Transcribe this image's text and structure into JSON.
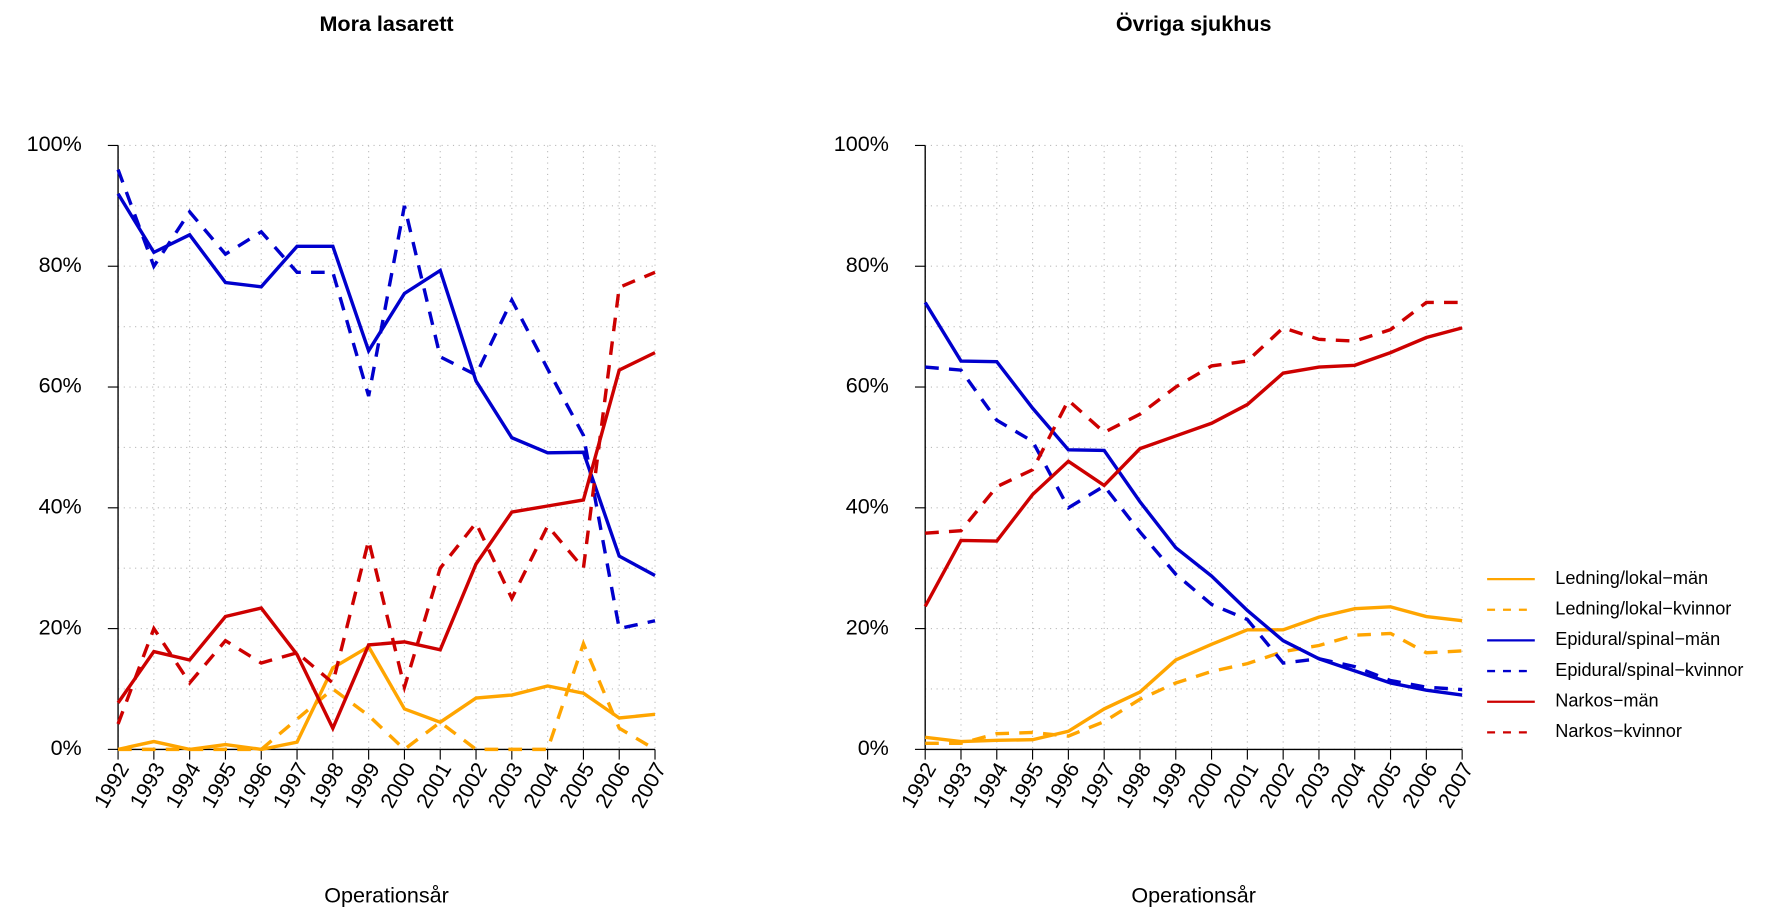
{
  "chart_data": [
    {
      "type": "line",
      "title": "Mora lasarett",
      "x_label": "Operationsår",
      "x": [
        1992,
        1993,
        1994,
        1995,
        1996,
        1997,
        1998,
        1999,
        2000,
        2001,
        2002,
        2003,
        2004,
        2005,
        2006,
        2007
      ],
      "xlim": [
        1992,
        2007
      ],
      "xticks": [
        1992,
        1993,
        1994,
        1995,
        1996,
        1997,
        1998,
        1999,
        2000,
        2001,
        2002,
        2003,
        2004,
        2005,
        2006,
        2007
      ],
      "ylim": [
        0,
        100
      ],
      "yticks": [
        {
          "value": 0,
          "label": "0%"
        },
        {
          "value": 20,
          "label": "20%"
        },
        {
          "value": 40,
          "label": "40%"
        },
        {
          "value": 60,
          "label": "60%"
        },
        {
          "value": 80,
          "label": "80%"
        },
        {
          "value": 100,
          "label": "100%"
        }
      ],
      "minor_grid_yticks": [
        10,
        30,
        50,
        70,
        90
      ],
      "grid": true,
      "series": [
        {
          "color": "#ffa500",
          "linestyle": "solid",
          "values": [
            0,
            1.3,
            0,
            0.8,
            0,
            1.2,
            13.5,
            17,
            6.7,
            4.5,
            8.5,
            9,
            10.5,
            9.3,
            5.2,
            5.8
          ]
        },
        {
          "color": "#ffa500",
          "linestyle": "dashed",
          "values": [
            0,
            0,
            0,
            0,
            0,
            5,
            10,
            5.6,
            0,
            4.5,
            0,
            0,
            0,
            17.5,
            3.5,
            0
          ]
        },
        {
          "color": "#0000cd",
          "linestyle": "solid",
          "values": [
            92,
            82.3,
            85.2,
            77.3,
            76.6,
            83.3,
            83.3,
            66,
            75.5,
            79.3,
            61,
            51.6,
            49.1,
            49.2,
            32,
            28.8
          ]
        },
        {
          "color": "#0000cd",
          "linestyle": "dashed",
          "values": [
            96,
            80,
            89,
            82,
            85.7,
            79,
            79,
            58.5,
            90,
            65,
            62,
            74.4,
            63,
            52,
            20,
            21.3
          ]
        },
        {
          "color": "#cd0000",
          "linestyle": "solid",
          "values": [
            7.7,
            16.2,
            14.8,
            22,
            23.4,
            15.7,
            3.5,
            17.3,
            17.8,
            16.5,
            30.7,
            39.3,
            40.3,
            41.3,
            62.8,
            65.7
          ]
        },
        {
          "color": "#cd0000",
          "linestyle": "dashed",
          "values": [
            4.2,
            20,
            11,
            18,
            14.3,
            16,
            11,
            34.6,
            10.3,
            30,
            37.5,
            25,
            37,
            30,
            76.5,
            79
          ]
        }
      ]
    },
    {
      "type": "line",
      "title": "Övriga sjukhus",
      "x_label": "Operationsår",
      "x": [
        1992,
        1993,
        1994,
        1995,
        1996,
        1997,
        1998,
        1999,
        2000,
        2001,
        2002,
        2003,
        2004,
        2005,
        2006,
        2007
      ],
      "xlim": [
        1992,
        2007
      ],
      "xticks": [
        1992,
        1993,
        1994,
        1995,
        1996,
        1997,
        1998,
        1999,
        2000,
        2001,
        2002,
        2003,
        2004,
        2005,
        2006,
        2007
      ],
      "ylim": [
        0,
        100
      ],
      "yticks": [
        {
          "value": 0,
          "label": "0%"
        },
        {
          "value": 20,
          "label": "20%"
        },
        {
          "value": 40,
          "label": "40%"
        },
        {
          "value": 60,
          "label": "60%"
        },
        {
          "value": 80,
          "label": "80%"
        },
        {
          "value": 100,
          "label": "100%"
        }
      ],
      "minor_grid_yticks": [
        10,
        30,
        50,
        70,
        90
      ],
      "grid": true,
      "legend": "right",
      "series": [
        {
          "name": "Ledning/lokal−män",
          "color": "#ffa500",
          "linestyle": "solid",
          "values": [
            2,
            1.3,
            1.5,
            1.6,
            3,
            6.7,
            9.5,
            14.8,
            17.4,
            19.8,
            19.8,
            21.9,
            23.3,
            23.6,
            22,
            21.3
          ]
        },
        {
          "name": "Ledning/lokal−kvinnor",
          "color": "#ffa500",
          "linestyle": "dashed",
          "values": [
            1,
            1,
            2.6,
            2.8,
            2.2,
            4.6,
            8.3,
            11,
            12.9,
            14.2,
            16.2,
            17.2,
            18.9,
            19.2,
            16,
            16.3
          ]
        },
        {
          "name": "Epidural/spinal−män",
          "color": "#0000cd",
          "linestyle": "solid",
          "values": [
            74,
            64.3,
            64.2,
            56.5,
            49.6,
            49.5,
            41,
            33.4,
            28.7,
            23,
            18,
            15,
            13,
            11,
            9.8,
            9
          ]
        },
        {
          "name": "Epidural/spinal−kvinnor",
          "color": "#0000cd",
          "linestyle": "dashed",
          "values": [
            63.3,
            62.8,
            54.5,
            51,
            40,
            43.6,
            36,
            29,
            24,
            21.5,
            14.3,
            15,
            13.7,
            11.4,
            10.3,
            9.9
          ]
        },
        {
          "name": "Narkos−män",
          "color": "#cd0000",
          "linestyle": "solid",
          "values": [
            23.7,
            34.6,
            34.5,
            42.2,
            47.7,
            43.7,
            49.8,
            51.9,
            54,
            57.1,
            62.3,
            63.3,
            63.6,
            65.7,
            68.2,
            69.8
          ]
        },
        {
          "name": "Narkos−kvinnor",
          "color": "#cd0000",
          "linestyle": "dashed",
          "values": [
            35.8,
            36.2,
            43.5,
            46.3,
            57.8,
            52.5,
            55.5,
            60,
            63.5,
            64.3,
            69.8,
            67.9,
            67.6,
            69.5,
            74,
            74
          ]
        }
      ]
    }
  ]
}
